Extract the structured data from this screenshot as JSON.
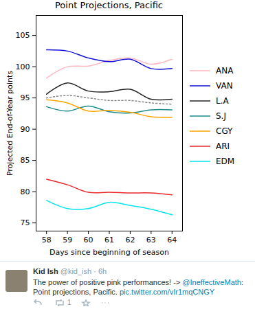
{
  "chart_data": {
    "type": "line",
    "title": "Point Projections, Pacific",
    "x_label": "Days since beginning of season",
    "y_label": "Projected End-of-Year points",
    "x": [
      58,
      59,
      60,
      61,
      62,
      63,
      64
    ],
    "series": [
      {
        "name": "ANA",
        "color": "#ffb6c1",
        "values": [
          98.2,
          100.0,
          100.1,
          101.0,
          101.4,
          100.4,
          101.2
        ]
      },
      {
        "name": "VAN",
        "color": "#1010d8",
        "values": [
          102.7,
          102.5,
          101.4,
          100.8,
          101.2,
          99.7,
          99.7
        ]
      },
      {
        "name": "L.A",
        "color": "#222222",
        "values": [
          95.6,
          97.4,
          96.1,
          96.0,
          96.4,
          94.8,
          94.8
        ]
      },
      {
        "name": "S.J",
        "color": "#1a8a8a",
        "values": [
          93.6,
          92.9,
          93.7,
          92.8,
          92.6,
          93.1,
          93.1
        ]
      },
      {
        "name": "CGY",
        "color": "#ffa500",
        "values": [
          94.7,
          94.2,
          92.9,
          93.0,
          92.7,
          92.0,
          91.9
        ]
      },
      {
        "name": "ARI",
        "color": "#e8282b",
        "values": [
          82.0,
          81.1,
          79.9,
          79.9,
          79.8,
          79.8,
          79.5
        ]
      },
      {
        "name": "EDM",
        "color": "#00e5ee",
        "values": [
          78.6,
          77.3,
          77.3,
          78.3,
          77.8,
          77.2,
          76.3
        ]
      },
      {
        "name": null,
        "color": "#888888",
        "line_style": "dotted",
        "values": [
          95.0,
          95.4,
          95.0,
          94.6,
          94.6,
          94.2,
          94.0
        ]
      }
    ],
    "xlim": [
      57.5,
      64.5
    ],
    "xticks": [
      58,
      59,
      60,
      61,
      62,
      63,
      64
    ],
    "ylim": [
      73.7,
      108.2
    ],
    "yticks": [
      75,
      80,
      85,
      90,
      95,
      100,
      105
    ],
    "legend": "right",
    "grid": false
  },
  "tweet": {
    "author": "Kid Ish",
    "handle": "@kid_ish · 6h",
    "text": [
      {
        "text": "The power of positive pink performances! -> ",
        "link": false
      },
      {
        "text": "@IneffectiveMath",
        "link": true
      },
      {
        "text": ": Point projections, Pacific. ",
        "link": false
      },
      {
        "text": "pic.twitter.com/vIr1mqCNGY",
        "link": true
      }
    ],
    "retweets": 1
  }
}
